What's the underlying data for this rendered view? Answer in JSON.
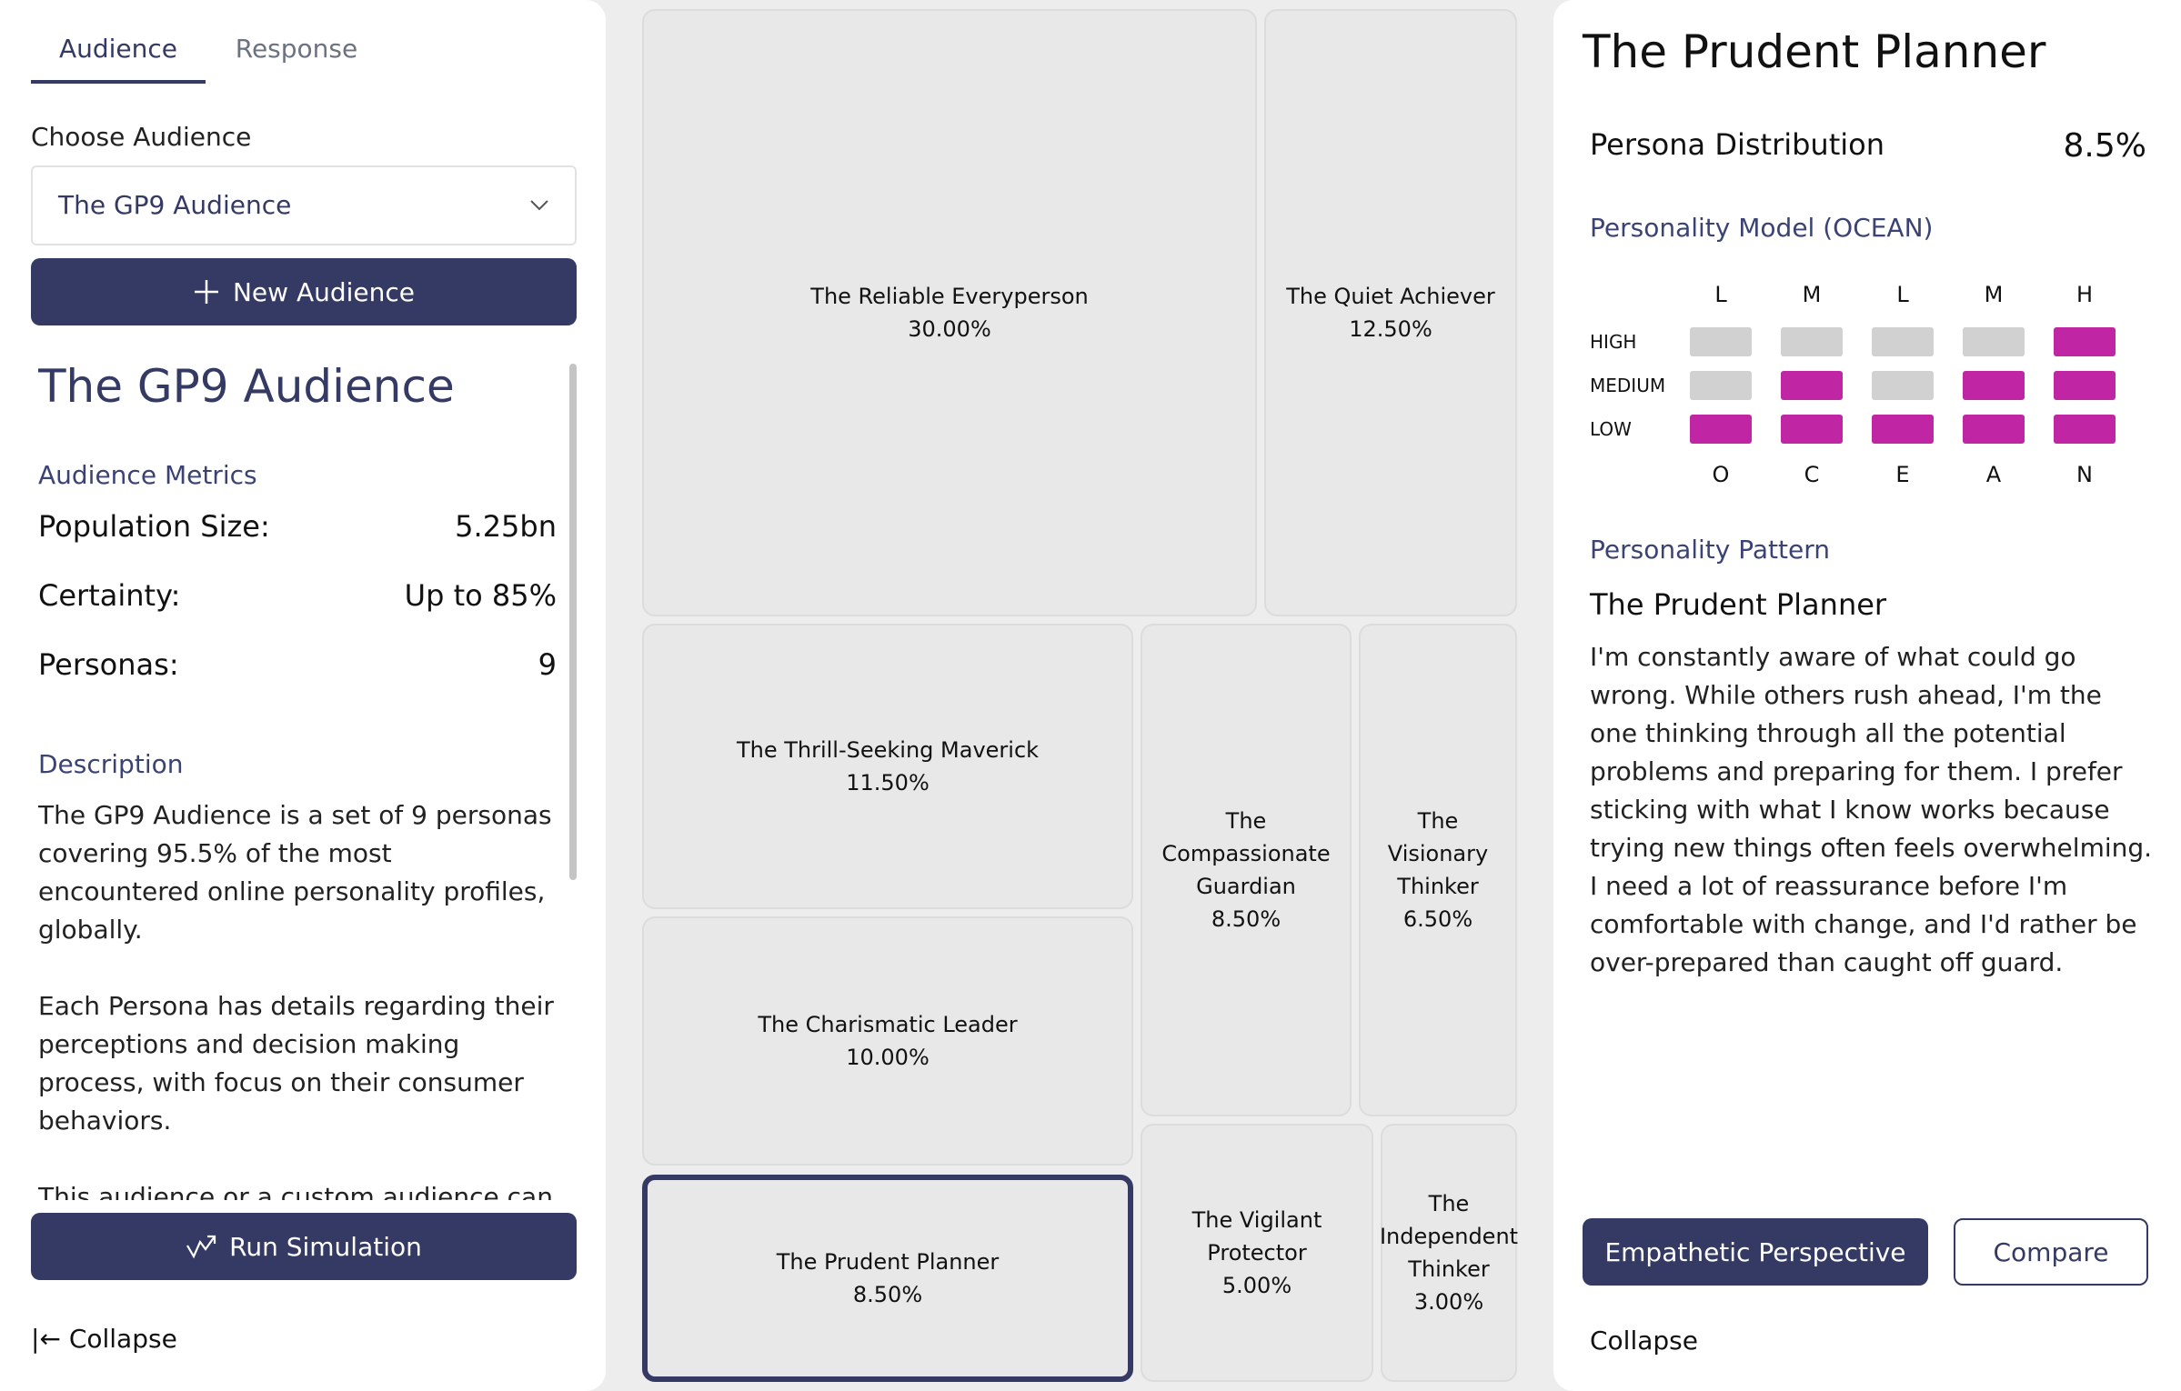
{
  "left_panel": {
    "tabs": [
      {
        "label": "Audience",
        "active": true
      },
      {
        "label": "Response",
        "active": false
      }
    ],
    "choose_label": "Choose Audience",
    "selected_audience": "The GP9 Audience",
    "new_audience_label": "New Audience",
    "audience_title": "The GP9 Audience",
    "metrics_label": "Audience Metrics",
    "metrics": [
      {
        "label": "Population Size:",
        "value": "5.25bn"
      },
      {
        "label": "Certainty:",
        "value": "Up to 85%"
      },
      {
        "label": "Personas:",
        "value": "9"
      }
    ],
    "description_label": "Description",
    "description": [
      "The GP9 Audience is a set of 9 personas covering 95.5% of the most encountered online personality profiles, globally.",
      "Each Persona has details regarding their perceptions and decision making process, with focus on their consumer behaviors.",
      "This audience or a custom audience can be the starting point for a data-driven communication strategy because you can"
    ],
    "run_simulation_label": "Run Simulation",
    "collapse_label": "Collapse",
    "collapse_icon": "|←"
  },
  "treemap": {
    "tiles": [
      {
        "name": "The Reliable Everyperson",
        "share": "30.00%"
      },
      {
        "name": "The Quiet Achiever",
        "share": "12.50%"
      },
      {
        "name": "The Thrill-Seeking Maverick",
        "share": "11.50%"
      },
      {
        "name": "The Compassionate Guardian",
        "share": "8.50%"
      },
      {
        "name": "The Visionary Thinker",
        "share": "6.50%"
      },
      {
        "name": "The Charismatic Leader",
        "share": "10.00%"
      },
      {
        "name": "The Prudent Planner",
        "share": "8.50%",
        "selected": true
      },
      {
        "name": "The Vigilant Protector",
        "share": "5.00%"
      },
      {
        "name": "The Independent Thinker",
        "share": "3.00%"
      }
    ]
  },
  "right_panel": {
    "persona_title": "The Prudent Planner",
    "distribution_label": "Persona Distribution",
    "distribution_value": "8.5%",
    "ocean_label": "Personality Model (OCEAN)",
    "ocean": {
      "levels": [
        "HIGH",
        "MEDIUM",
        "LOW"
      ],
      "traits": [
        "O",
        "C",
        "E",
        "A",
        "N"
      ],
      "trait_levels": [
        "L",
        "M",
        "L",
        "M",
        "H"
      ],
      "active_color": "#c026a3",
      "inactive_color": "#d1d1d1"
    },
    "pattern_label": "Personality Pattern",
    "pattern_name": "The Prudent Planner",
    "pattern_text": "I'm constantly aware of what could go wrong. While others rush ahead, I'm the one thinking through all the potential problems and preparing for them. I prefer sticking with what I know works because trying new things often feels overwhelming. I need a lot of reassurance before I'm comfortable with change, and I'd rather be over-prepared than caught off guard.",
    "empathetic_label": "Empathetic Perspective",
    "compare_label": "Compare",
    "collapse_label": "Collapse"
  },
  "colors": {
    "primary": "#343a63",
    "accent": "#c026a3",
    "tile_bg": "#e8e8e8"
  }
}
